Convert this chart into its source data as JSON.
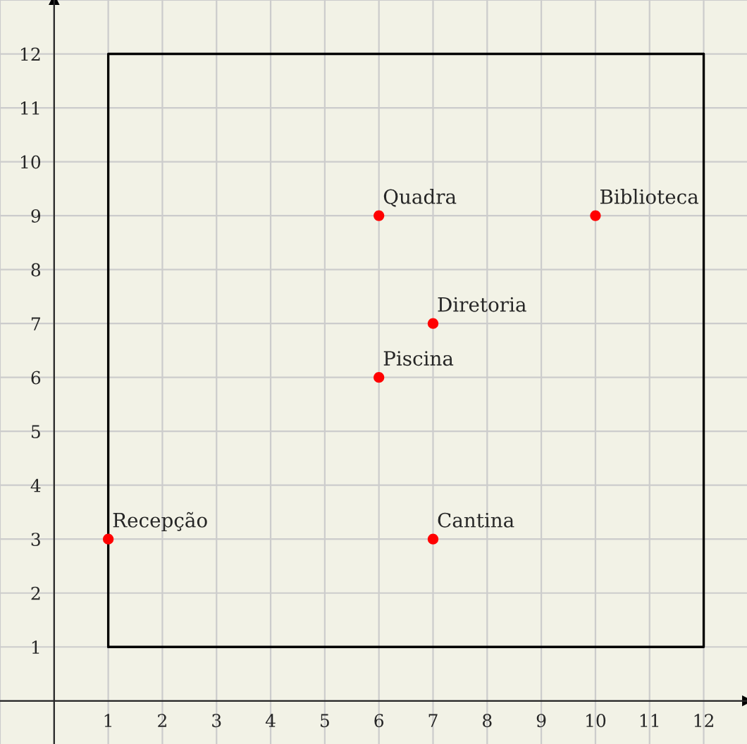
{
  "chart_data": {
    "type": "scatter",
    "series": [
      {
        "type": "scatter",
        "color": "#ff0000",
        "marker": "circle",
        "x": [
          1,
          6,
          7,
          6,
          10,
          7
        ],
        "values": [
          3,
          9,
          7,
          6,
          9,
          3
        ]
      },
      {
        "type": "line",
        "marker": "none",
        "color": "#000000",
        "x": [
          1,
          12,
          12
        ],
        "values": [
          1,
          1,
          12
        ]
      },
      {
        "type": "line",
        "marker": "none",
        "color": "#000000",
        "x": [
          1,
          1,
          12
        ],
        "values": [
          1,
          12,
          12
        ]
      }
    ],
    "annotations": [
      {
        "text": "Recepção",
        "x": 1,
        "y": 3
      },
      {
        "text": "Quadra",
        "x": 6,
        "y": 9
      },
      {
        "text": "Diretoria",
        "x": 7,
        "y": 7
      },
      {
        "text": "Piscina",
        "x": 6,
        "y": 6
      },
      {
        "text": "Biblioteca",
        "x": 10,
        "y": 9
      },
      {
        "text": "Cantina",
        "x": 7,
        "y": 3
      }
    ],
    "xlim": [
      -1,
      12.8
    ],
    "ylim": [
      -0.8,
      13
    ],
    "xticks": [
      1,
      2,
      3,
      4,
      5,
      6,
      7,
      8,
      9,
      10,
      11,
      12
    ],
    "yticks": [
      1,
      2,
      3,
      4,
      5,
      6,
      7,
      8,
      9,
      10,
      11,
      12
    ],
    "grid": true
  }
}
